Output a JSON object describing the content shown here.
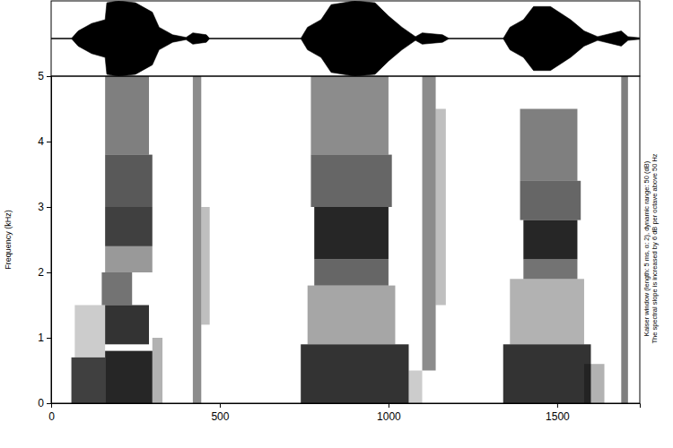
{
  "chart_data": [
    {
      "type": "area",
      "color": "#000000",
      "tick_labels": false,
      "xlim": [
        0,
        1745
      ],
      "ylim": [
        -1,
        1
      ],
      "x": [
        0,
        60,
        80,
        120,
        160,
        165,
        200,
        250,
        300,
        320,
        360,
        400,
        420,
        460,
        470,
        740,
        760,
        800,
        830,
        900,
        960,
        1000,
        1040,
        1080,
        1100,
        1160,
        1180,
        1340,
        1360,
        1400,
        1430,
        1480,
        1540,
        1580,
        1620,
        1690,
        1710,
        1745
      ],
      "values": [
        0,
        0,
        0.2,
        0.4,
        0.5,
        0.95,
        1.0,
        0.95,
        0.7,
        0.3,
        0.1,
        0.03,
        0.15,
        0.1,
        0,
        0,
        0.3,
        0.5,
        0.9,
        1.0,
        0.95,
        0.6,
        0.3,
        0.05,
        0.15,
        0.1,
        0,
        0,
        0.3,
        0.5,
        0.85,
        0.85,
        0.5,
        0.2,
        0.05,
        0.2,
        0.05,
        0.02
      ]
    },
    {
      "type": "heatmap",
      "color": "#000000",
      "y_label": "Frequency (kHz)",
      "annotations": [
        "Kaiser window (length: 5 ms, α: 2), dynamic range: 50 (dB)",
        "The spectral slope is increased by 6 dB per octave above 50 Hz"
      ],
      "xlim": [
        0,
        1745
      ],
      "ylim": [
        0,
        5
      ],
      "xticks": [
        0,
        500,
        1000,
        1500
      ],
      "yticks": [
        0,
        1,
        2,
        3,
        4,
        5
      ],
      "cells": [
        {
          "x0": 60,
          "x1": 160,
          "y0": 0,
          "y1": 0.7,
          "value": 0.75
        },
        {
          "x0": 70,
          "x1": 160,
          "y0": 0.7,
          "y1": 1.5,
          "value": 0.2
        },
        {
          "x0": 160,
          "x1": 300,
          "y0": 0,
          "y1": 0.8,
          "value": 0.85
        },
        {
          "x0": 160,
          "x1": 290,
          "y0": 0.9,
          "y1": 1.5,
          "value": 0.8
        },
        {
          "x0": 150,
          "x1": 240,
          "y0": 1.5,
          "y1": 2.0,
          "value": 0.55
        },
        {
          "x0": 160,
          "x1": 300,
          "y0": 2.0,
          "y1": 2.4,
          "value": 0.4
        },
        {
          "x0": 160,
          "x1": 300,
          "y0": 2.4,
          "y1": 3.0,
          "value": 0.75
        },
        {
          "x0": 160,
          "x1": 300,
          "y0": 3.0,
          "y1": 3.8,
          "value": 0.65
        },
        {
          "x0": 160,
          "x1": 290,
          "y0": 3.8,
          "y1": 5.0,
          "value": 0.5
        },
        {
          "x0": 300,
          "x1": 330,
          "y0": 0,
          "y1": 1.0,
          "value": 0.3
        },
        {
          "x0": 420,
          "x1": 445,
          "y0": 0,
          "y1": 5.0,
          "value": 0.45
        },
        {
          "x0": 445,
          "x1": 470,
          "y0": 1.2,
          "y1": 3.0,
          "value": 0.25
        },
        {
          "x0": 740,
          "x1": 1060,
          "y0": 0,
          "y1": 0.9,
          "value": 0.8
        },
        {
          "x0": 760,
          "x1": 1020,
          "y0": 0.9,
          "y1": 1.8,
          "value": 0.35
        },
        {
          "x0": 780,
          "x1": 1000,
          "y0": 1.8,
          "y1": 2.2,
          "value": 0.6
        },
        {
          "x0": 780,
          "x1": 1000,
          "y0": 2.2,
          "y1": 3.0,
          "value": 0.85
        },
        {
          "x0": 770,
          "x1": 1010,
          "y0": 3.0,
          "y1": 3.8,
          "value": 0.6
        },
        {
          "x0": 770,
          "x1": 1000,
          "y0": 3.8,
          "y1": 5.0,
          "value": 0.45
        },
        {
          "x0": 1060,
          "x1": 1100,
          "y0": 0,
          "y1": 0.5,
          "value": 0.2
        },
        {
          "x0": 1100,
          "x1": 1140,
          "y0": 0.5,
          "y1": 5.0,
          "value": 0.45
        },
        {
          "x0": 1140,
          "x1": 1170,
          "y0": 1.5,
          "y1": 4.5,
          "value": 0.25
        },
        {
          "x0": 1340,
          "x1": 1600,
          "y0": 0,
          "y1": 0.9,
          "value": 0.8
        },
        {
          "x0": 1360,
          "x1": 1580,
          "y0": 0.9,
          "y1": 1.9,
          "value": 0.3
        },
        {
          "x0": 1400,
          "x1": 1560,
          "y0": 1.9,
          "y1": 2.2,
          "value": 0.55
        },
        {
          "x0": 1400,
          "x1": 1560,
          "y0": 2.2,
          "y1": 2.8,
          "value": 0.85
        },
        {
          "x0": 1390,
          "x1": 1570,
          "y0": 2.8,
          "y1": 3.4,
          "value": 0.6
        },
        {
          "x0": 1390,
          "x1": 1560,
          "y0": 3.4,
          "y1": 4.5,
          "value": 0.5
        },
        {
          "x0": 1580,
          "x1": 1640,
          "y0": 0,
          "y1": 0.6,
          "value": 0.3
        },
        {
          "x0": 1690,
          "x1": 1710,
          "y0": 0,
          "y1": 5.0,
          "value": 0.5
        }
      ]
    }
  ]
}
